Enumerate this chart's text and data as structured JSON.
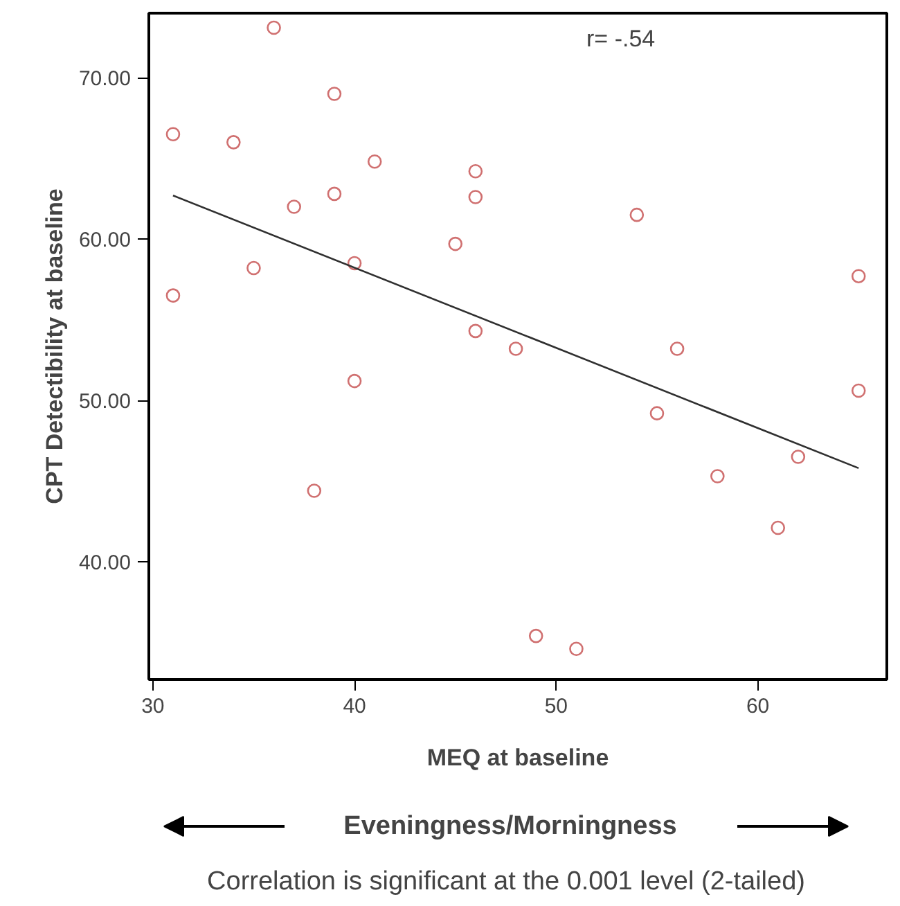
{
  "chart_data": {
    "type": "scatter",
    "xlabel": "MEQ at baseline",
    "ylabel": "CPT Detectibility at baseline",
    "x": [
      31,
      31,
      34,
      35,
      36,
      37,
      38,
      39,
      39,
      40,
      40,
      41,
      45,
      46,
      46,
      46,
      48,
      49,
      51,
      54,
      55,
      56,
      58,
      61,
      62,
      65,
      65
    ],
    "series": [
      {
        "color": "#d07070",
        "marker": "circle",
        "values": [
          66.5,
          56.5,
          66.0,
          58.2,
          73.1,
          62.0,
          44.4,
          69.0,
          62.8,
          58.5,
          51.2,
          64.8,
          59.7,
          64.2,
          62.6,
          54.3,
          53.2,
          35.4,
          34.6,
          61.5,
          49.2,
          53.2,
          45.3,
          42.1,
          46.5,
          57.7,
          50.6
        ]
      },
      {
        "type": "line",
        "color": "#303030",
        "x": [
          31,
          65
        ],
        "values": [
          62.7,
          45.8
        ]
      }
    ],
    "xlim": [
      29.8,
      66.4
    ],
    "ylim": [
      32.7,
      74.0
    ],
    "xticks": [
      30,
      40,
      50,
      60
    ],
    "yticks": [
      {
        "value": 40,
        "label": "40.00"
      },
      {
        "value": 50,
        "label": "50.00"
      },
      {
        "value": 60,
        "label": "60.00"
      },
      {
        "value": 70,
        "label": "70.00"
      }
    ],
    "grid": false,
    "annotations": [
      "r= -.54",
      "Eveningness/Morningness",
      "Correlation is significant at the 0.001 level (2-tailed)"
    ]
  }
}
